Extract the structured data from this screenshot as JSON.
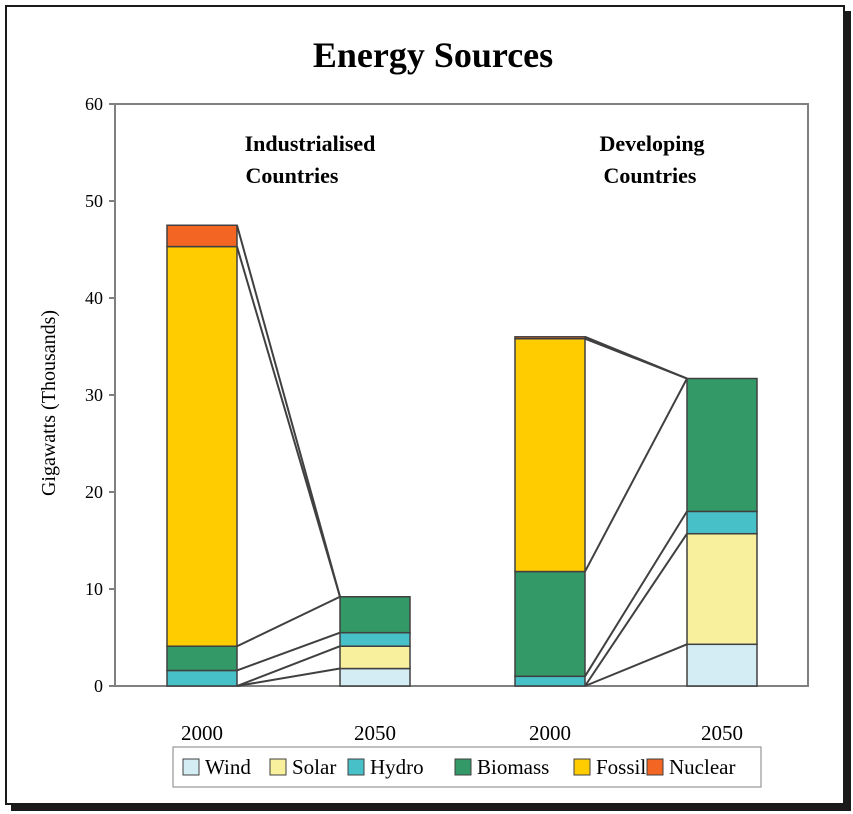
{
  "chart_data": {
    "type": "bar",
    "stacked": true,
    "title": "Energy Sources",
    "ylabel": "Gigawatts (Thousands)",
    "ylim": [
      0,
      60
    ],
    "yticks": [
      0,
      10,
      20,
      30,
      40,
      50,
      60
    ],
    "grid": false,
    "legend_position": "bottom",
    "groups": [
      {
        "label_lines": [
          "Industrialised",
          "Countries"
        ],
        "categories": [
          "2000",
          "2050"
        ]
      },
      {
        "label_lines": [
          "Developing",
          "Countries"
        ],
        "categories": [
          "2000",
          "2050"
        ]
      }
    ],
    "categories": [
      "2000",
      "2050",
      "2000",
      "2050"
    ],
    "series": [
      {
        "name": "Wind",
        "color": "#d4ecf4",
        "values": [
          0,
          1.8,
          0,
          4.3
        ]
      },
      {
        "name": "Solar",
        "color": "#f8f09c",
        "values": [
          0,
          2.3,
          0,
          11.4
        ]
      },
      {
        "name": "Hydro",
        "color": "#48c0c8",
        "values": [
          1.6,
          1.4,
          1.0,
          2.3
        ]
      },
      {
        "name": "Biomass",
        "color": "#339966",
        "values": [
          2.5,
          3.7,
          10.8,
          13.7
        ]
      },
      {
        "name": "Fossil",
        "color": "#ffcc00",
        "values": [
          41.2,
          0,
          24.0,
          0
        ]
      },
      {
        "name": "Nuclear",
        "color": "#f26522",
        "values": [
          2.2,
          0,
          0.2,
          0
        ]
      }
    ]
  }
}
